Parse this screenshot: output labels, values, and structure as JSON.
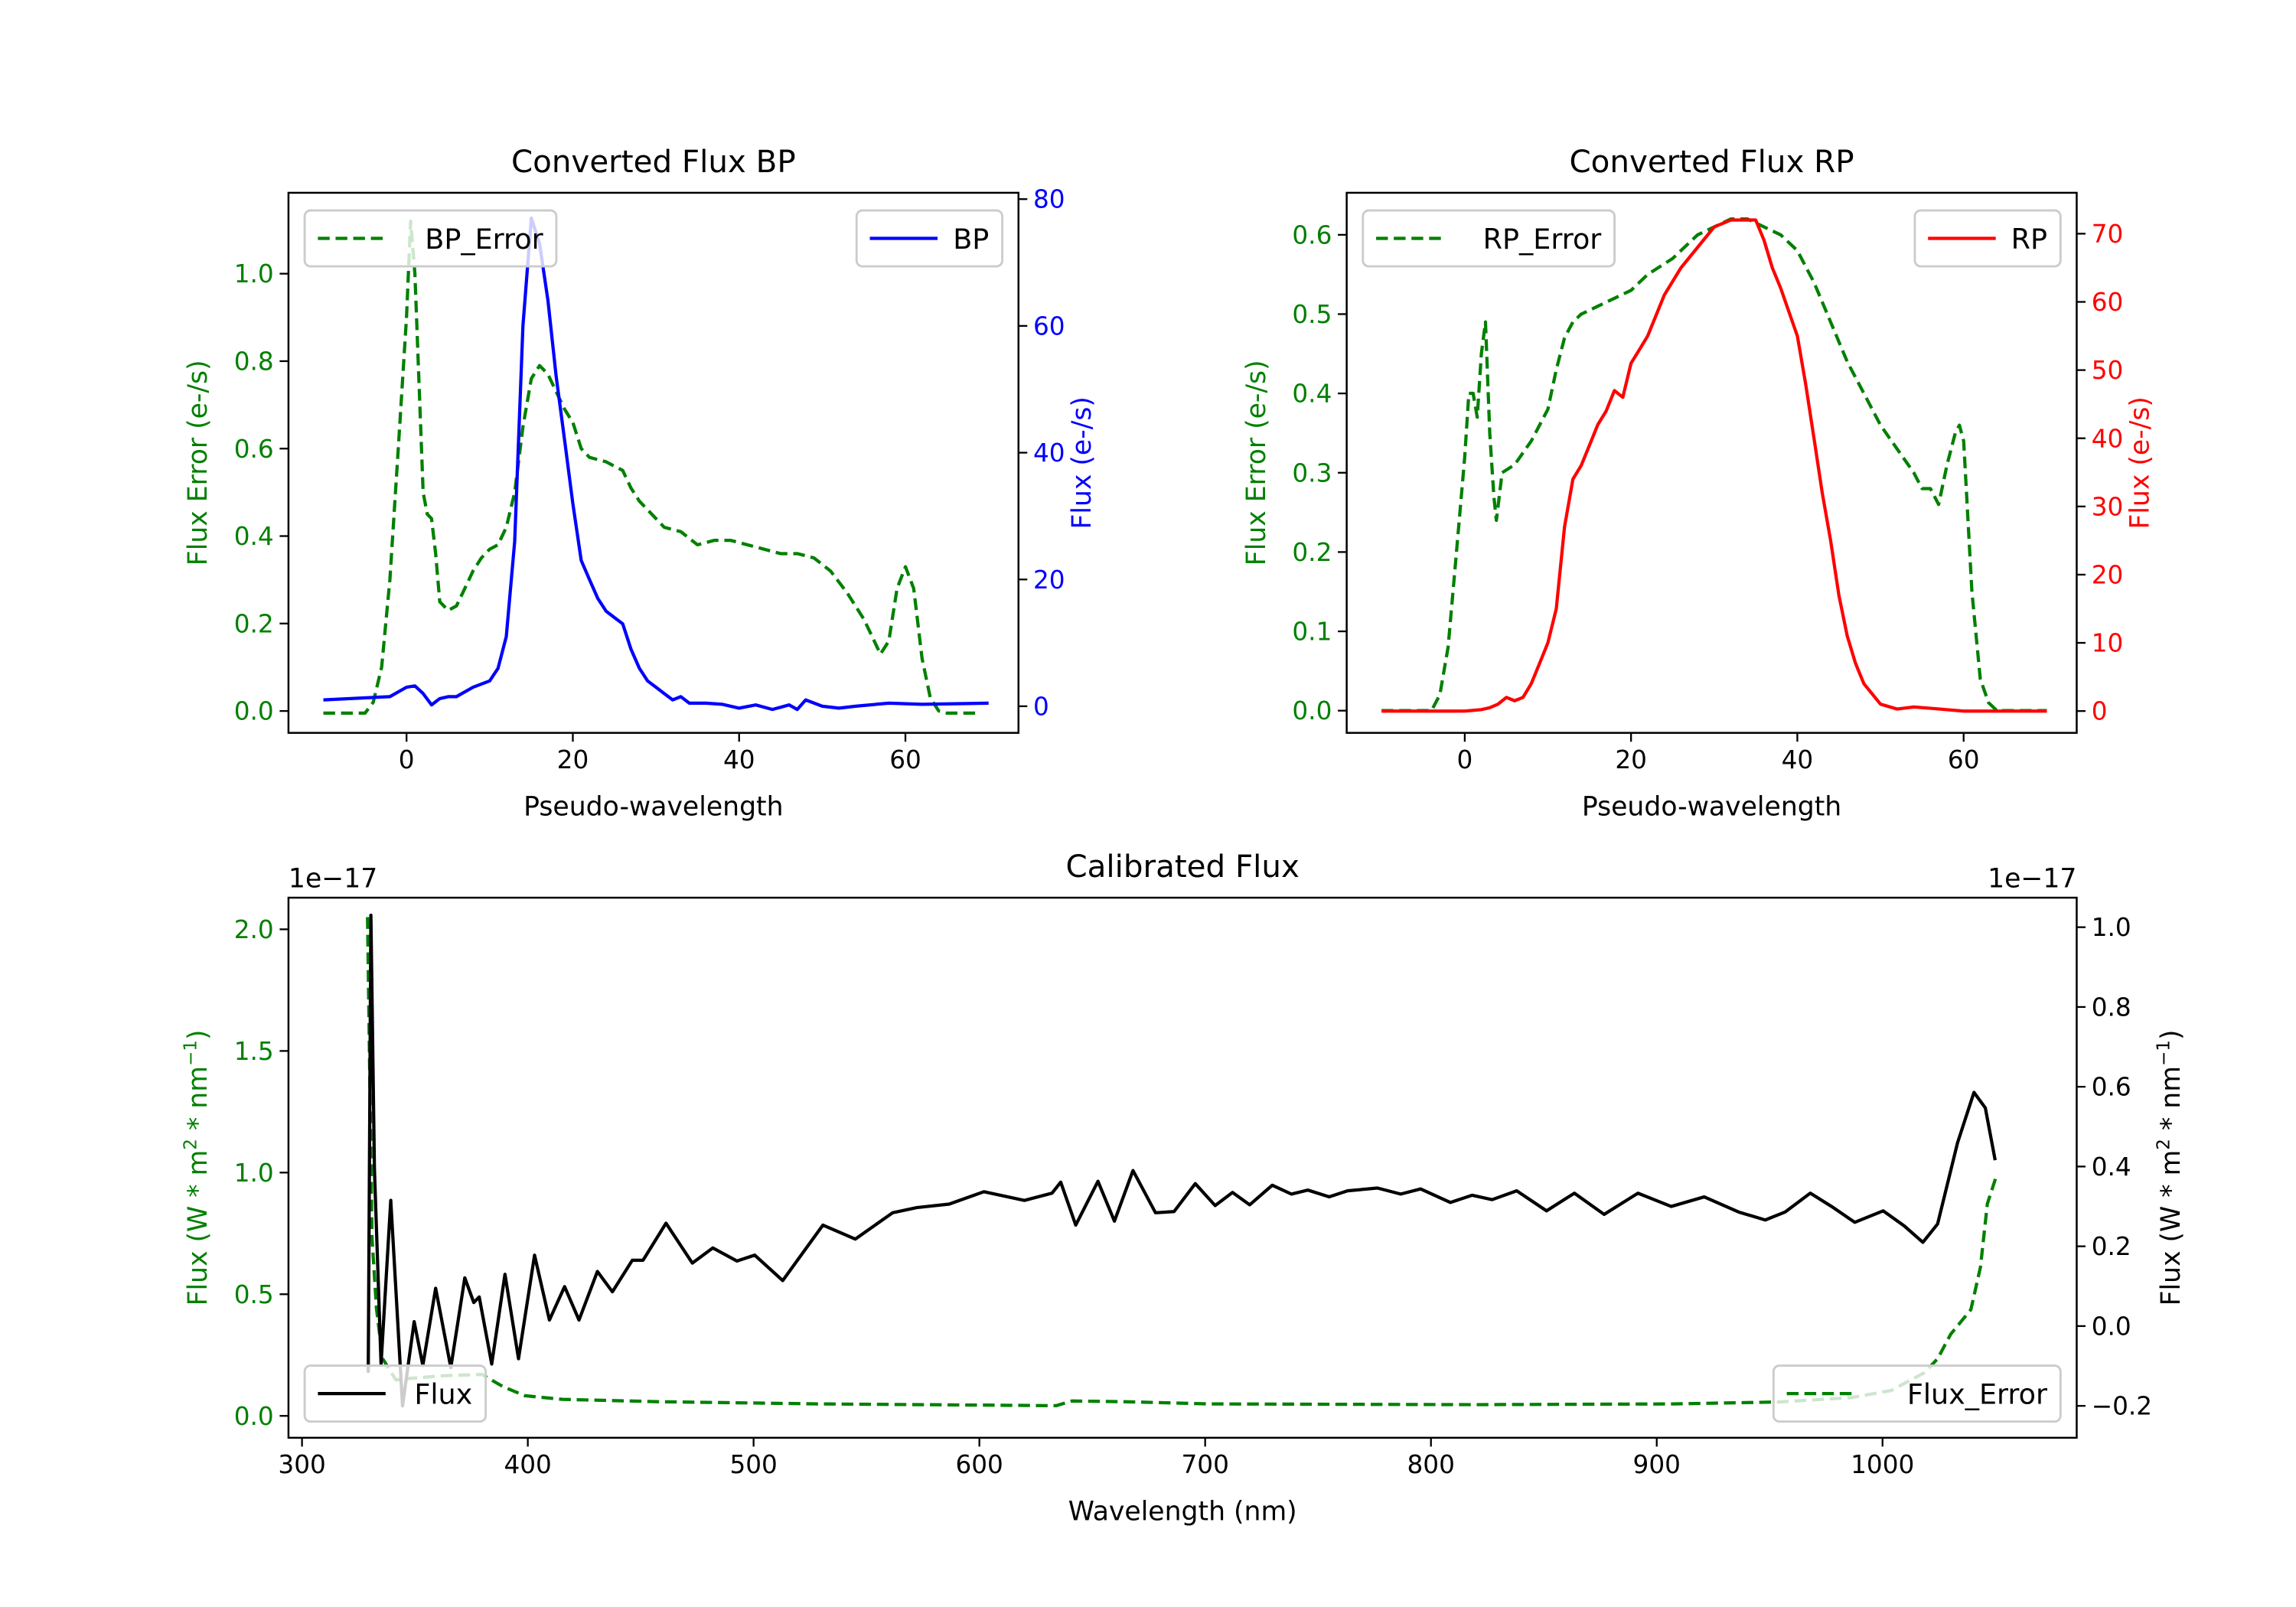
{
  "chart_data": [
    {
      "type": "line",
      "title": "Converted Flux BP",
      "xlabel": "Pseudo-wavelength",
      "xlim": [
        -14.2,
        73.6
      ],
      "xticks": [
        0,
        20,
        40,
        60
      ],
      "xtick_labels": [
        "0",
        "20",
        "40",
        "60"
      ],
      "left_axis": {
        "label": "Flux Error (e-/s)",
        "color": "#008000",
        "ylim": [
          -0.05,
          1.185
        ],
        "ticks": [
          0,
          0.2,
          0.4,
          0.6,
          0.8,
          1.0
        ],
        "tick_labels": [
          "0.0",
          "0.2",
          "0.4",
          "0.6",
          "0.8",
          "1.0"
        ],
        "legend": "upper left"
      },
      "right_axis": {
        "label": "Flux (e-/s)",
        "color": "#0000ff",
        "ylim": [
          -4.2,
          81
        ],
        "ticks": [
          0,
          20,
          40,
          60,
          80
        ],
        "tick_labels": [
          "0",
          "20",
          "40",
          "60",
          "80"
        ],
        "legend": "upper right"
      },
      "series": [
        {
          "name": "BP_Error",
          "axis": "left",
          "color": "#008000",
          "style": "dashed",
          "x": [
            -10,
            -5,
            -4,
            -3,
            -2,
            -1,
            0,
            0.5,
            1,
            1.5,
            2,
            2.5,
            3,
            3.5,
            4,
            5,
            6,
            7,
            8,
            9,
            10,
            11,
            12,
            13,
            14,
            15,
            16,
            17,
            18,
            19,
            20,
            21,
            22,
            24,
            26,
            27,
            28,
            29,
            31,
            33,
            35,
            37,
            39,
            41,
            43,
            45,
            47,
            49,
            51,
            53,
            55,
            56,
            57,
            58,
            59,
            60,
            61,
            62,
            63,
            64,
            65,
            69
          ],
          "y": [
            -0.005,
            -0.005,
            0.02,
            0.1,
            0.3,
            0.6,
            0.9,
            1.12,
            1.0,
            0.75,
            0.5,
            0.45,
            0.44,
            0.36,
            0.25,
            0.23,
            0.24,
            0.28,
            0.32,
            0.35,
            0.37,
            0.38,
            0.42,
            0.5,
            0.65,
            0.76,
            0.79,
            0.77,
            0.73,
            0.69,
            0.66,
            0.6,
            0.58,
            0.57,
            0.55,
            0.51,
            0.48,
            0.46,
            0.42,
            0.41,
            0.38,
            0.39,
            0.39,
            0.38,
            0.37,
            0.36,
            0.36,
            0.35,
            0.32,
            0.27,
            0.21,
            0.17,
            0.13,
            0.16,
            0.28,
            0.33,
            0.28,
            0.12,
            0.03,
            0.0,
            -0.005,
            -0.005
          ]
        },
        {
          "name": "BP",
          "axis": "right",
          "color": "#0000ff",
          "style": "solid",
          "x": [
            -10,
            -2,
            0,
            1,
            2,
            3,
            4,
            5,
            6,
            8,
            10,
            11,
            12,
            13,
            14,
            15,
            16,
            17,
            18,
            19,
            20,
            21,
            22,
            23,
            24,
            25,
            26,
            27,
            28,
            29,
            30,
            31,
            32,
            33,
            34,
            36,
            38,
            40,
            42,
            44,
            46,
            47,
            48,
            50,
            52,
            54,
            58,
            62,
            70
          ],
          "y": [
            1,
            1.5,
            3,
            3.2,
            2,
            0.2,
            1.2,
            1.5,
            1.5,
            3,
            4,
            6,
            11,
            26,
            60,
            77,
            73,
            64,
            52,
            42,
            32,
            23,
            20,
            17,
            15,
            14,
            13,
            9,
            6,
            4,
            3,
            2,
            1,
            1.5,
            0.5,
            0.5,
            0.3,
            -0.3,
            0.2,
            -0.5,
            0.2,
            -0.5,
            1,
            0,
            -0.3,
            0,
            0.5,
            0.3,
            0.5
          ]
        }
      ]
    },
    {
      "type": "line",
      "title": "Converted Flux RP",
      "xlabel": "Pseudo-wavelength",
      "xlim": [
        -14.2,
        73.6
      ],
      "xticks": [
        0,
        20,
        40,
        60
      ],
      "xtick_labels": [
        "0",
        "20",
        "40",
        "60"
      ],
      "left_axis": {
        "label": "Flux Error (e-/s)",
        "color": "#008000",
        "ylim": [
          -0.028,
          0.653
        ],
        "ticks": [
          0,
          0.1,
          0.2,
          0.3,
          0.4,
          0.5,
          0.6
        ],
        "tick_labels": [
          "0.0",
          "0.1",
          "0.2",
          "0.3",
          "0.4",
          "0.5",
          "0.6"
        ],
        "legend": "upper left"
      },
      "right_axis": {
        "label": "Flux (e-/s)",
        "color": "#ff0000",
        "ylim": [
          -3.2,
          76
        ],
        "ticks": [
          0,
          10,
          20,
          30,
          40,
          50,
          60,
          70
        ],
        "tick_labels": [
          "0",
          "10",
          "20",
          "30",
          "40",
          "50",
          "60",
          "70"
        ],
        "legend": "upper right"
      },
      "series": [
        {
          "name": "RP_Error",
          "axis": "left",
          "color": "#008000",
          "style": "dashed",
          "x": [
            -10,
            -4,
            -3,
            -2,
            -1,
            0,
            0.5,
            1,
            1.5,
            2,
            2.5,
            3,
            3.5,
            3.8,
            4.5,
            6,
            8,
            10,
            11,
            12,
            13,
            14,
            16,
            18,
            20,
            22,
            25,
            28,
            30,
            32,
            34,
            36,
            38,
            40,
            42,
            44,
            46,
            48,
            50,
            52,
            54,
            55,
            56,
            57,
            58,
            59,
            59.5,
            60,
            61,
            62,
            63,
            64,
            70
          ],
          "y": [
            0,
            0,
            0.02,
            0.08,
            0.2,
            0.32,
            0.4,
            0.4,
            0.37,
            0.45,
            0.49,
            0.35,
            0.27,
            0.24,
            0.3,
            0.31,
            0.34,
            0.38,
            0.43,
            0.47,
            0.49,
            0.5,
            0.51,
            0.52,
            0.53,
            0.55,
            0.57,
            0.6,
            0.61,
            0.62,
            0.62,
            0.61,
            0.6,
            0.58,
            0.54,
            0.49,
            0.44,
            0.4,
            0.36,
            0.33,
            0.3,
            0.28,
            0.28,
            0.26,
            0.31,
            0.35,
            0.36,
            0.34,
            0.15,
            0.04,
            0.01,
            0,
            0
          ]
        },
        {
          "name": "RP",
          "axis": "right",
          "color": "#ff0000",
          "style": "solid",
          "x": [
            -10,
            0,
            2,
            3,
            4,
            5,
            6,
            7,
            8,
            9,
            10,
            11,
            12,
            13,
            14,
            15,
            16,
            17,
            18,
            19,
            20,
            21,
            22,
            24,
            26,
            28,
            30,
            32,
            33,
            34,
            35,
            36,
            37,
            38,
            40,
            41,
            42,
            43,
            44,
            45,
            46,
            47,
            48,
            50,
            52,
            54,
            56,
            60,
            70
          ],
          "y": [
            0,
            0,
            0.2,
            0.5,
            1,
            2,
            1.5,
            2,
            4,
            7,
            10,
            15,
            27,
            34,
            36,
            39,
            42,
            44,
            47,
            46,
            51,
            53,
            55,
            61,
            65,
            68,
            71,
            72,
            72,
            72,
            72,
            69,
            65,
            62,
            55,
            48,
            40,
            32,
            25,
            17,
            11,
            7,
            4,
            1,
            0.3,
            0.6,
            0.4,
            0,
            0
          ]
        }
      ]
    },
    {
      "type": "line",
      "title": "Calibrated Flux",
      "xlabel": "Wavelength (nm)",
      "xlim": [
        294,
        1086
      ],
      "xticks": [
        300,
        400,
        500,
        600,
        700,
        800,
        900,
        1000
      ],
      "xtick_labels": [
        "300",
        "400",
        "500",
        "600",
        "700",
        "800",
        "900",
        "1000"
      ],
      "left_axis": {
        "label_main": "Flux (W * m",
        "label_sup1": "2",
        "label_mid": " * nm",
        "label_sup2": "−1",
        "label_end": ")",
        "color": "#008000",
        "ylim": [
          -0.09,
          2.13
        ],
        "offset_text": "1e−17",
        "ticks": [
          0,
          0.5,
          1.0,
          1.5,
          2.0
        ],
        "tick_labels": [
          "0.0",
          "0.5",
          "1.0",
          "1.5",
          "2.0"
        ],
        "legend": "lower right"
      },
      "right_axis": {
        "label_main": "Flux (W * m",
        "label_sup1": "2",
        "label_mid": " * nm",
        "label_sup2": "−1",
        "label_end": ")",
        "color": "#000000",
        "ylim": [
          -0.28,
          1.074
        ],
        "offset_text": "1e−17",
        "ticks": [
          -0.2,
          0,
          0.2,
          0.4,
          0.6,
          0.8,
          1.0
        ],
        "tick_labels": [
          "−0.2",
          "0.0",
          "0.2",
          "0.4",
          "0.6",
          "0.8",
          "1.0"
        ],
        "legend": "lower left"
      },
      "series": [
        {
          "name": "Flux_Error",
          "axis": "left",
          "color": "#008000",
          "style": "dashed",
          "x": [
            329,
            331,
            333,
            335.7,
            341.6,
            348.8,
            363,
            379.7,
            389.2,
            398.7,
            415.4,
            458,
            529.5,
            600.8,
            634,
            641,
            664.6,
            701.5,
            818.9,
            907,
            953.9,
            986.2,
            1003.8,
            1018.5,
            1024.4,
            1030.2,
            1039.1,
            1043.4,
            1046.4,
            1050.2
          ],
          "y": [
            2.05,
            0.727,
            0.44,
            0.235,
            0.148,
            0.155,
            0.165,
            0.17,
            0.119,
            0.083,
            0.068,
            0.058,
            0.049,
            0.044,
            0.042,
            0.061,
            0.058,
            0.049,
            0.046,
            0.049,
            0.057,
            0.075,
            0.104,
            0.177,
            0.235,
            0.336,
            0.437,
            0.611,
            0.872,
            0.98
          ]
        },
        {
          "name": "Flux",
          "axis": "right",
          "color": "#000000",
          "style": "solid",
          "x": [
            329.3,
            330.5,
            332.1,
            335,
            339.3,
            344.5,
            349.7,
            353.5,
            359.2,
            365.9,
            372.1,
            376.1,
            378.5,
            384,
            389.9,
            395.9,
            403,
            409.6,
            416.3,
            422.7,
            430.8,
            437.5,
            446.3,
            451,
            461.2,
            472.9,
            481.9,
            492.6,
            500.5,
            512.9,
            530.7,
            545,
            561.6,
            572.3,
            586.6,
            602,
            619.9,
            632.2,
            636,
            642.7,
            652.5,
            659.8,
            668,
            678,
            686.2,
            695.6,
            704.4,
            712.1,
            719.7,
            729.7,
            738.2,
            745.5,
            754.9,
            763.1,
            776.3,
            786.6,
            795.4,
            808.6,
            818.3,
            827.1,
            838,
            851.2,
            863.5,
            876.7,
            891.7,
            906.4,
            921,
            936.3,
            948.1,
            956.9,
            968,
            977.4,
            987.7,
            1000.3,
            1009.7,
            1017.9,
            1024.4,
            1033.2,
            1040.5,
            1045.5,
            1049.9
          ],
          "y": [
            -0.117,
            1.03,
            0.394,
            -0.095,
            0.315,
            -0.2,
            0.011,
            -0.099,
            0.095,
            -0.104,
            0.121,
            0.059,
            0.073,
            -0.095,
            0.13,
            -0.082,
            0.178,
            0.015,
            0.099,
            0.015,
            0.137,
            0.086,
            0.165,
            0.165,
            0.258,
            0.158,
            0.196,
            0.163,
            0.178,
            0.114,
            0.253,
            0.218,
            0.284,
            0.297,
            0.306,
            0.337,
            0.315,
            0.333,
            0.361,
            0.253,
            0.363,
            0.263,
            0.39,
            0.284,
            0.287,
            0.357,
            0.302,
            0.335,
            0.304,
            0.353,
            0.331,
            0.341,
            0.324,
            0.339,
            0.346,
            0.331,
            0.344,
            0.31,
            0.328,
            0.317,
            0.339,
            0.289,
            0.333,
            0.28,
            0.333,
            0.3,
            0.324,
            0.286,
            0.266,
            0.286,
            0.333,
            0.3,
            0.26,
            0.289,
            0.251,
            0.21,
            0.256,
            0.459,
            0.586,
            0.547,
            0.416
          ]
        }
      ]
    }
  ]
}
